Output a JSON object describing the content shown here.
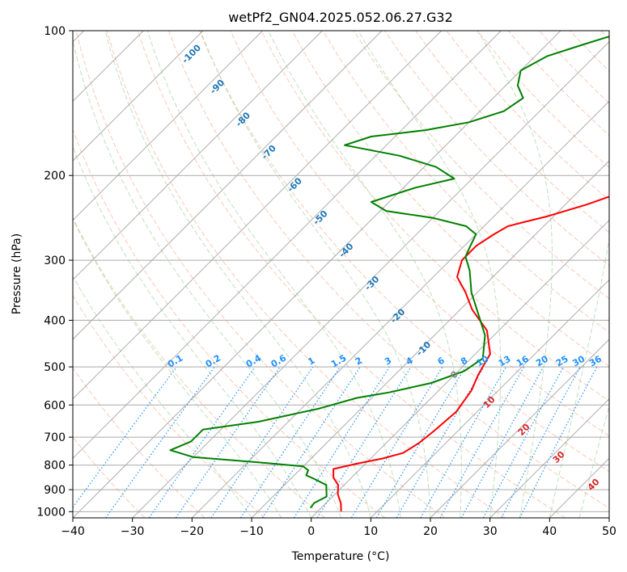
{
  "chart_data": {
    "type": "line",
    "subtype": "skew-t log-p",
    "title": "wetPf2_GN04.2025.052.06.27.G32",
    "xlabel": "Temperature (°C)",
    "ylabel": "Pressure (hPa)",
    "xlim": [
      -40,
      50
    ],
    "ylim": [
      1030,
      100
    ],
    "yscale": "log",
    "grid": true,
    "x_ticks": [
      "−40",
      "−30",
      "−20",
      "−10",
      "0",
      "10",
      "20",
      "30",
      "40",
      "50"
    ],
    "y_ticks": [
      "100",
      "200",
      "300",
      "400",
      "500",
      "600",
      "700",
      "800",
      "900",
      "1000"
    ],
    "isotherm_labels": [
      "-100",
      "-90",
      "-80",
      "-70",
      "-60",
      "-50",
      "-40",
      "-30",
      "-20",
      "-10"
    ],
    "mixing_ratio_labels": [
      "0.1",
      "0.2",
      "0.4",
      "0.6",
      "1",
      "1.5",
      "2",
      "3",
      "4",
      "6",
      "8",
      "10",
      "13",
      "16",
      "20",
      "25",
      "30",
      "36"
    ],
    "moist_adiabat_labels": [
      "0",
      "10",
      "20",
      "30",
      "40"
    ],
    "colors": {
      "temperature": "#ff0000",
      "dewpoint": "#008000",
      "isotherm_label": "#1f77b4",
      "mixing_ratio": "#1e90ff",
      "moist_adiabat_label": "#d62728",
      "dry_adiabat": "#f7a383",
      "moist_adiabat": "#a3d4a3",
      "skewed_isotherm": "#999999",
      "zero_label": "#808080"
    },
    "series": [
      {
        "key": "temperature",
        "points": [
          [
            3.8,
            995
          ],
          [
            2.5,
            960
          ],
          [
            0.5,
            920
          ],
          [
            -1.0,
            880
          ],
          [
            -3.0,
            850
          ],
          [
            -4.5,
            815
          ],
          [
            -1.5,
            795
          ],
          [
            2.0,
            775
          ],
          [
            4.5,
            755
          ],
          [
            5.5,
            720
          ],
          [
            6.0,
            680
          ],
          [
            6.5,
            620
          ],
          [
            5.5,
            560
          ],
          [
            4.0,
            520
          ],
          [
            2.5,
            470
          ],
          [
            -2.0,
            420
          ],
          [
            -8.0,
            380
          ],
          [
            -12.0,
            350
          ],
          [
            -16.0,
            325
          ],
          [
            -18.0,
            300
          ],
          [
            -18.0,
            280
          ],
          [
            -17.0,
            265
          ],
          [
            -16.0,
            255
          ],
          [
            -14.0,
            250
          ],
          [
            -11.0,
            243
          ],
          [
            -6.5,
            230
          ],
          [
            -3.0,
            218
          ],
          [
            1.0,
            200
          ],
          [
            6.0,
            178
          ],
          [
            9.0,
            158
          ],
          [
            11.0,
            140
          ],
          [
            12.5,
            128
          ],
          [
            15.5,
            120
          ],
          [
            19.0,
            113
          ],
          [
            22.5,
            106
          ],
          [
            24.5,
            100
          ]
        ]
      },
      {
        "key": "dewpoint",
        "points": [
          [
            -1.8,
            980
          ],
          [
            -2.0,
            960
          ],
          [
            -1.0,
            930
          ],
          [
            -3.0,
            880
          ],
          [
            -6.0,
            855
          ],
          [
            -8.0,
            840
          ],
          [
            -8.5,
            820
          ],
          [
            -10.0,
            805
          ],
          [
            -18.0,
            790
          ],
          [
            -30.0,
            770
          ],
          [
            -35.0,
            745
          ],
          [
            -33.0,
            715
          ],
          [
            -33.0,
            690
          ],
          [
            -33.0,
            675
          ],
          [
            -25.0,
            650
          ],
          [
            -17.0,
            610
          ],
          [
            -12.5,
            580
          ],
          [
            -8.0,
            565
          ],
          [
            -2.5,
            540
          ],
          [
            1.0,
            510
          ],
          [
            2.0,
            480
          ],
          [
            -1.5,
            430
          ],
          [
            -6.0,
            390
          ],
          [
            -11.0,
            350
          ],
          [
            -15.0,
            315
          ],
          [
            -18.0,
            295
          ],
          [
            -19.0,
            280
          ],
          [
            -20.0,
            265
          ],
          [
            -23.0,
            255
          ],
          [
            -30.0,
            245
          ],
          [
            -39.0,
            237
          ],
          [
            -43.0,
            227
          ],
          [
            -38.0,
            212
          ],
          [
            -33.0,
            203
          ],
          [
            -38.0,
            192
          ],
          [
            -46.0,
            182
          ],
          [
            -57.0,
            173
          ],
          [
            -54.0,
            166
          ],
          [
            -46.0,
            161
          ],
          [
            -40.0,
            155
          ],
          [
            -36.0,
            147
          ],
          [
            -35.0,
            138
          ],
          [
            -38.0,
            130
          ],
          [
            -40.0,
            121
          ],
          [
            -38.0,
            113
          ],
          [
            -34.0,
            107
          ],
          [
            -31.0,
            103
          ],
          [
            -29.0,
            100
          ]
        ]
      }
    ]
  }
}
